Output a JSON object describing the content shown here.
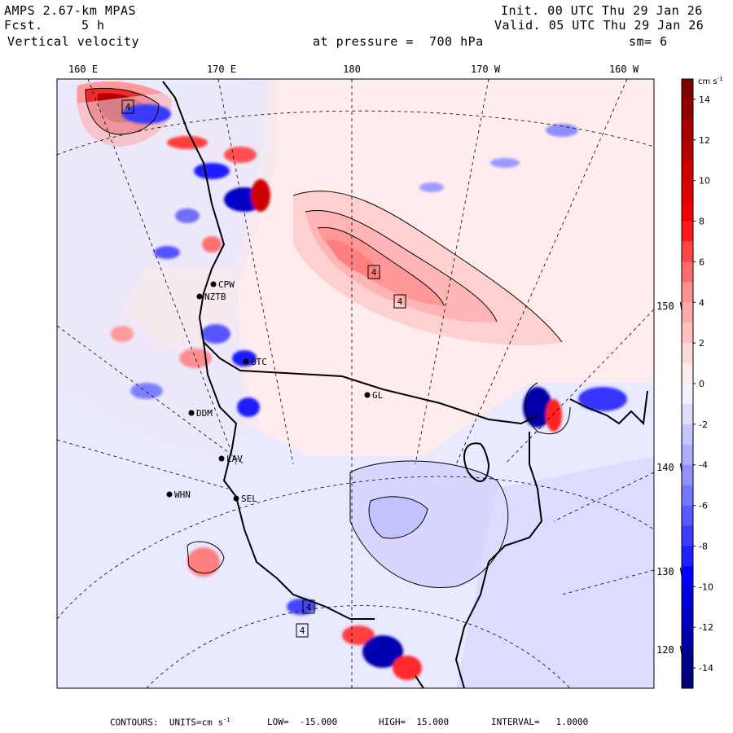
{
  "header": {
    "model": "AMPS 2.67-km MPAS",
    "fcst_label": "Fcst.",
    "fcst_value": "5 h",
    "field": "Vertical velocity",
    "init": "Init. 00 UTC Thu 29 Jan 26",
    "valid": "Valid. 05 UTC Thu 29 Jan 26",
    "level": "at pressure =  700 hPa",
    "smoothing": "sm= 6"
  },
  "chart_data": {
    "type": "heatmap",
    "title": "Vertical velocity",
    "variable": "vertical velocity at 700 hPa",
    "units": "cm s-1",
    "colorbar": {
      "units_label": "cm s",
      "units_exponent": "-1",
      "levels": [
        15,
        14,
        13,
        12,
        11,
        10,
        9,
        8,
        7,
        6,
        5,
        4,
        3,
        2,
        1,
        0,
        -1,
        -2,
        -3,
        -4,
        -5,
        -6,
        -7,
        -8,
        -9,
        -10,
        -11,
        -12,
        -13,
        -14,
        -15
      ],
      "tick_labels": [
        "14",
        "12",
        "10",
        "8",
        "6",
        "4",
        "2",
        "0",
        "-2",
        "-4",
        "-6",
        "-8",
        "-10",
        "-12",
        "-14"
      ],
      "colors": [
        "#7f0000",
        "#900000",
        "#a60000",
        "#b80000",
        "#cc0000",
        "#dc0000",
        "#ee0000",
        "#ff1a1a",
        "#ff4545",
        "#ff6e6e",
        "#ff9090",
        "#ffaaaa",
        "#ffc2c2",
        "#ffd8d8",
        "#ffecec",
        "#f2f2ff",
        "#dcdcff",
        "#c6c6ff",
        "#aeaeff",
        "#9292ff",
        "#7676ff",
        "#5a5aff",
        "#3c3cff",
        "#2020ff",
        "#0000ff",
        "#0000e0",
        "#0000c4",
        "#0000a8",
        "#000090",
        "#00007a"
      ]
    },
    "top_axis_labels": [
      "160 E",
      "170 E",
      "180",
      "170 W",
      "160 W"
    ],
    "right_axis_labels": [
      "150 W",
      "140 W",
      "130 W",
      "120 W"
    ],
    "stations": [
      "CPW",
      "NZTB",
      "BTC",
      "DDM",
      "LAV",
      "WHN",
      "SEL",
      "GL"
    ],
    "contour_labels": [
      "4",
      "4",
      "4",
      "4",
      "4"
    ],
    "value_range": [
      -15,
      15
    ]
  },
  "footer": {
    "contours": "CONTOURS:  UNITS=cm s",
    "units_exp": "-1",
    "low": "LOW=  -15.000",
    "high": "HIGH=  15.000",
    "interval": "INTERVAL=   1.0000"
  }
}
